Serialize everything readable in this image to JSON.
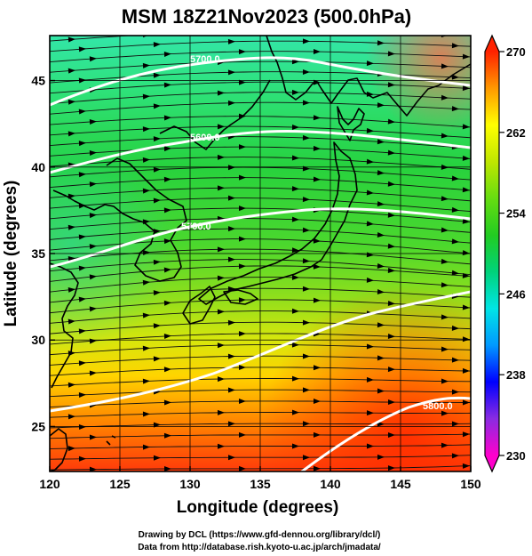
{
  "title": "MSM 18Z21Nov2023 (500.0hPa)",
  "xlabel": "Longitude (degrees)",
  "ylabel": "Latitude  (degrees)",
  "credits": [
    "Drawing by DCL (https://www.gfd-dennou.org/library/dcl/)",
    "Data from http://database.rish.kyoto-u.ac.jp/arch/jmadata/"
  ],
  "map": {
    "lon_range": [
      120,
      150
    ],
    "lat_range": [
      22.4,
      47.6
    ],
    "lon_ticks": [
      "120",
      "125",
      "130",
      "135",
      "140",
      "145",
      "150"
    ],
    "lat_ticks": [
      "25",
      "30",
      "35",
      "40",
      "45"
    ],
    "grid_lons": [
      120,
      125,
      130,
      135,
      140,
      145,
      150
    ],
    "grid_lats": [
      25,
      30,
      35,
      40,
      45
    ]
  },
  "colorbar": {
    "min": 230,
    "max": 270,
    "tick_labels": [
      "270",
      "262",
      "254",
      "246",
      "238",
      "230"
    ],
    "colors": [
      "#ff00cc",
      "#8a2be2",
      "#0000ff",
      "#0099ff",
      "#00e5e5",
      "#00d27a",
      "#22cc22",
      "#66dd11",
      "#bfe600",
      "#ffff00",
      "#ff9900",
      "#ff2200"
    ]
  },
  "chart_data": {
    "type": "heatmap",
    "variable": "temperature (K) with wind streamlines and height contours",
    "colorbar_range": [
      230,
      270
    ],
    "contours": [
      {
        "label": "5700.0"
      },
      {
        "label": "5600.0"
      },
      {
        "label": "5700.0"
      },
      {
        "label": "5800.0"
      }
    ]
  }
}
